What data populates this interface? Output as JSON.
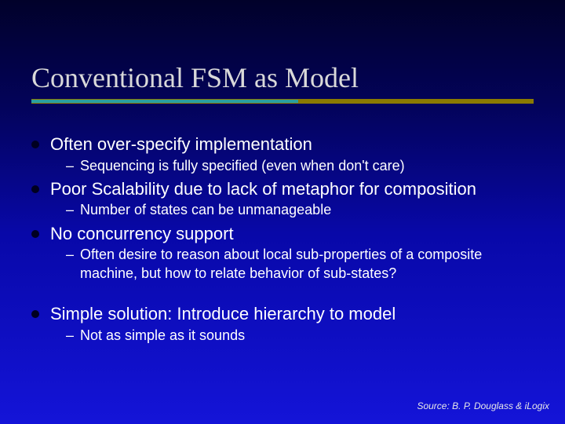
{
  "slide": {
    "title": "Conventional FSM as  Model",
    "title_color": "#d9d9d9",
    "title_fontsize": 36,
    "title_font": "Times New Roman",
    "underline_outer_color": "#8a7a00",
    "underline_inner_color": "#2aa0a0",
    "background_gradient": [
      "#01012a",
      "#03035a",
      "#0808a8",
      "#1414d8"
    ],
    "text_color": "#ffffff",
    "bullet_color": "#000020",
    "body_fontsize_level1": 22,
    "body_fontsize_level2": 18,
    "bullets": [
      {
        "text": "Often over-specify implementation",
        "sub": [
          "Sequencing is fully specified (even when don't care)"
        ]
      },
      {
        "text": "Poor Scalability due to lack of metaphor for composition",
        "sub": [
          "Number of states can be unmanageable"
        ]
      },
      {
        "text": "No concurrency support",
        "sub": [
          "Often desire to reason about local sub-properties of a composite machine, but how to relate behavior of sub-states?"
        ]
      }
    ],
    "gap_after_index": 2,
    "bullets2": [
      {
        "text": "Simple solution: Introduce hierarchy to model",
        "sub": [
          "Not as simple as it sounds"
        ]
      }
    ],
    "source": "Source: B. P. Douglass & iLogix"
  }
}
